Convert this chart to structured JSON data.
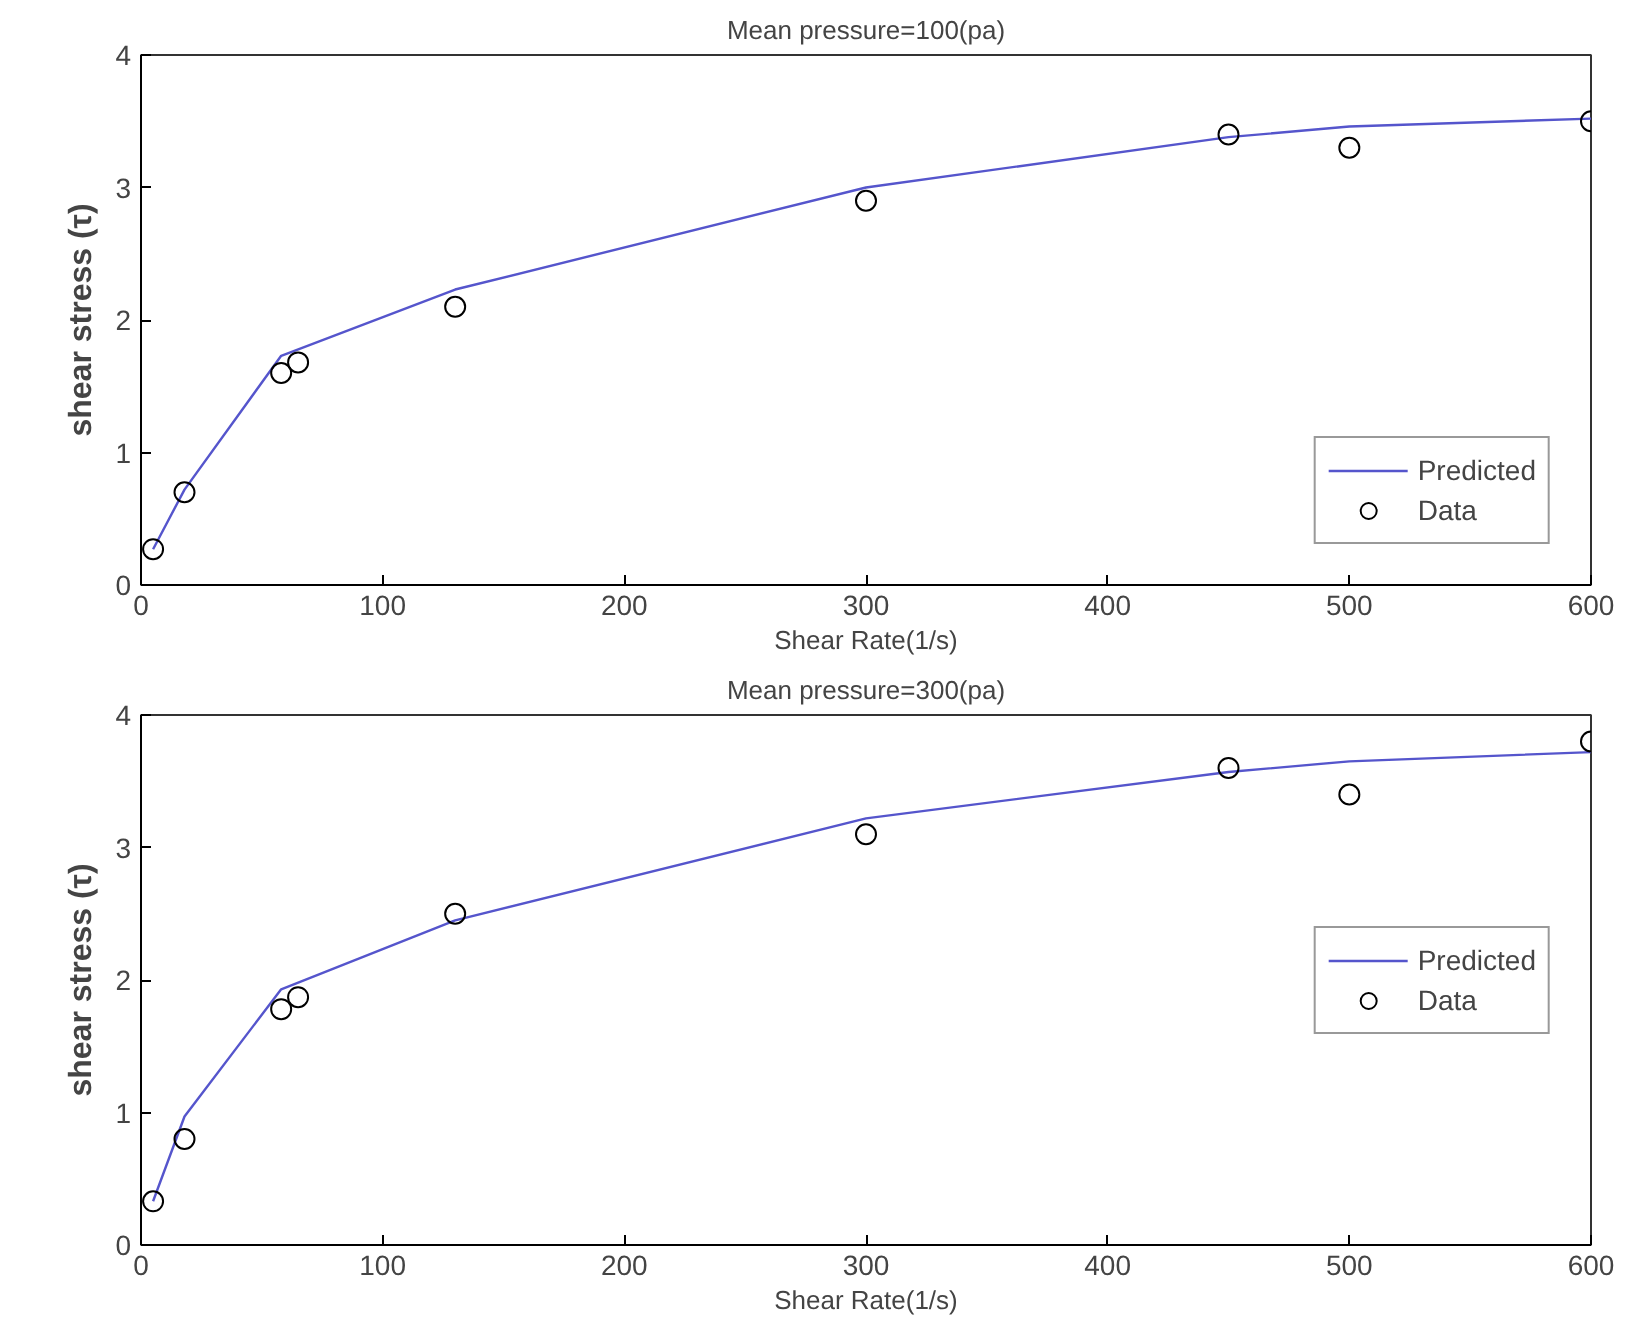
{
  "chart_data": [
    {
      "type": "line",
      "title": "Mean pressure=100(pa)",
      "xlabel": "Shear Rate(1/s)",
      "ylabel": "shear stress (τ)",
      "xlim": [
        0,
        600
      ],
      "ylim": [
        0,
        4
      ],
      "xticks": [
        0,
        100,
        200,
        300,
        400,
        500,
        600
      ],
      "yticks": [
        0,
        1,
        2,
        3,
        4
      ],
      "grid": false,
      "legend": "bottom right",
      "series": [
        {
          "name": "Predicted",
          "color": "#5555cc",
          "marker": "none",
          "x": [
            5,
            18,
            58,
            130,
            300,
            450,
            500,
            600
          ],
          "values": [
            0.27,
            0.72,
            1.73,
            2.23,
            3.0,
            3.38,
            3.46,
            3.52
          ]
        },
        {
          "name": "Data",
          "type": "scatter",
          "color": "#000000",
          "marker": "circle",
          "x": [
            5,
            18,
            58,
            65,
            130,
            300,
            450,
            500,
            600
          ],
          "values": [
            0.27,
            0.7,
            1.6,
            1.68,
            2.1,
            2.9,
            3.4,
            3.3,
            3.5
          ]
        }
      ]
    },
    {
      "type": "line",
      "title": "Mean pressure=300(pa)",
      "xlabel": "Shear Rate(1/s)",
      "ylabel": "shear stress (τ)",
      "xlim": [
        0,
        600
      ],
      "ylim": [
        0,
        4
      ],
      "xticks": [
        0,
        100,
        200,
        300,
        400,
        500,
        600
      ],
      "yticks": [
        0,
        1,
        2,
        3,
        4
      ],
      "grid": false,
      "legend": "right",
      "series": [
        {
          "name": "Predicted",
          "color": "#5555cc",
          "marker": "none",
          "x": [
            5,
            18,
            58,
            130,
            300,
            450,
            500,
            600
          ],
          "values": [
            0.33,
            0.97,
            1.93,
            2.45,
            3.22,
            3.57,
            3.65,
            3.72
          ]
        },
        {
          "name": "Data",
          "type": "scatter",
          "color": "#000000",
          "marker": "circle",
          "x": [
            5,
            18,
            58,
            65,
            130,
            300,
            450,
            500,
            600
          ],
          "values": [
            0.33,
            0.8,
            1.78,
            1.87,
            2.5,
            3.1,
            3.6,
            3.4,
            3.8
          ]
        }
      ]
    }
  ]
}
